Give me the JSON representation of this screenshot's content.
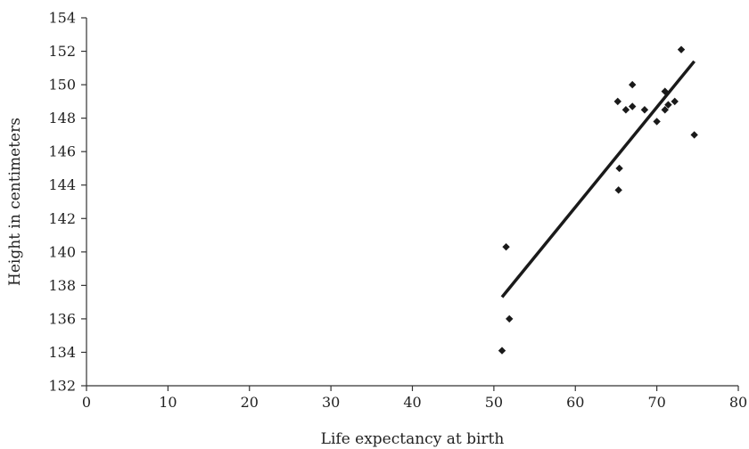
{
  "chart_data": {
    "type": "scatter",
    "title": "",
    "xlabel": "Life expectancy at birth",
    "ylabel": "Height in centimeters",
    "xlim": [
      0,
      80
    ],
    "ylim": [
      132,
      154
    ],
    "xticks": [
      "0",
      "10",
      "20",
      "30",
      "40",
      "50",
      "60",
      "70",
      "80"
    ],
    "yticks": [
      "132",
      "134",
      "136",
      "138",
      "140",
      "142",
      "144",
      "146",
      "148",
      "150",
      "152",
      "154"
    ],
    "grid": false,
    "legend": "none",
    "marker_color": "#1a1a1a",
    "series": [
      {
        "points": [
          {
            "x": 51.0,
            "y": 134.1
          },
          {
            "x": 51.5,
            "y": 140.3
          },
          {
            "x": 51.9,
            "y": 136.0
          },
          {
            "x": 65.2,
            "y": 149.0
          },
          {
            "x": 65.4,
            "y": 145.0
          },
          {
            "x": 65.3,
            "y": 143.7
          },
          {
            "x": 66.2,
            "y": 148.5
          },
          {
            "x": 67.0,
            "y": 148.7
          },
          {
            "x": 67.0,
            "y": 150.0
          },
          {
            "x": 68.5,
            "y": 148.5
          },
          {
            "x": 70.0,
            "y": 147.8
          },
          {
            "x": 71.0,
            "y": 148.5
          },
          {
            "x": 71.0,
            "y": 149.6
          },
          {
            "x": 71.4,
            "y": 148.8
          },
          {
            "x": 72.2,
            "y": 149.0
          },
          {
            "x": 73.0,
            "y": 152.1
          },
          {
            "x": 74.6,
            "y": 147.0
          }
        ]
      }
    ],
    "trendline": {
      "x": [
        51.0,
        74.6
      ],
      "y": [
        137.3,
        151.4
      ]
    }
  }
}
